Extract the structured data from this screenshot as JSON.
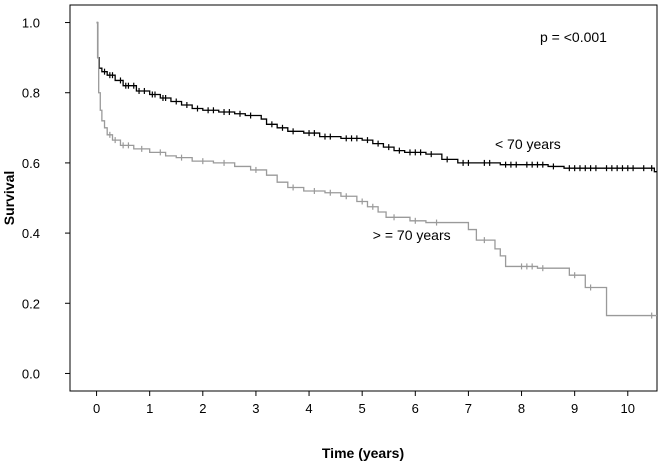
{
  "chart_data": {
    "type": "line",
    "subtype": "kaplan-meier",
    "title": "",
    "xlabel": "Time (years)",
    "ylabel": "Survival",
    "xlim": [
      -0.5,
      10.55
    ],
    "ylim": [
      -0.05,
      1.05
    ],
    "xticks": [
      0,
      1,
      2,
      3,
      4,
      5,
      6,
      7,
      8,
      9,
      10
    ],
    "yticks": [
      0.0,
      0.2,
      0.4,
      0.6,
      0.8,
      1.0
    ],
    "ytick_labels": [
      "0.0",
      "0.2",
      "0.4",
      "0.6",
      "0.8",
      "1.0"
    ],
    "grid": false,
    "annotation": "p = <0.001",
    "series": [
      {
        "name": "< 70 years",
        "color": "#000000",
        "steps": [
          [
            0,
            1.0
          ],
          [
            0.02,
            0.9
          ],
          [
            0.05,
            0.87
          ],
          [
            0.1,
            0.86
          ],
          [
            0.2,
            0.85
          ],
          [
            0.35,
            0.835
          ],
          [
            0.5,
            0.82
          ],
          [
            0.75,
            0.805
          ],
          [
            1.0,
            0.795
          ],
          [
            1.2,
            0.785
          ],
          [
            1.4,
            0.775
          ],
          [
            1.6,
            0.765
          ],
          [
            1.8,
            0.755
          ],
          [
            2.0,
            0.75
          ],
          [
            2.3,
            0.745
          ],
          [
            2.6,
            0.74
          ],
          [
            2.8,
            0.735
          ],
          [
            3.0,
            0.735
          ],
          [
            3.1,
            0.725
          ],
          [
            3.2,
            0.71
          ],
          [
            3.4,
            0.7
          ],
          [
            3.6,
            0.69
          ],
          [
            3.9,
            0.685
          ],
          [
            4.2,
            0.675
          ],
          [
            4.6,
            0.67
          ],
          [
            5.0,
            0.665
          ],
          [
            5.2,
            0.655
          ],
          [
            5.4,
            0.645
          ],
          [
            5.6,
            0.635
          ],
          [
            5.8,
            0.63
          ],
          [
            6.2,
            0.625
          ],
          [
            6.5,
            0.61
          ],
          [
            6.8,
            0.6
          ],
          [
            7.2,
            0.6
          ],
          [
            7.6,
            0.595
          ],
          [
            8.0,
            0.595
          ],
          [
            8.5,
            0.59
          ],
          [
            8.8,
            0.585
          ],
          [
            9.5,
            0.585
          ],
          [
            10.5,
            0.575
          ]
        ],
        "censor_x": [
          0.15,
          0.25,
          0.3,
          0.45,
          0.55,
          0.6,
          0.7,
          0.8,
          0.9,
          1.05,
          1.1,
          1.25,
          1.3,
          1.5,
          1.7,
          1.9,
          2.1,
          2.2,
          2.4,
          2.5,
          2.7,
          2.9,
          3.3,
          3.5,
          3.7,
          4.0,
          4.1,
          4.3,
          4.4,
          4.7,
          4.8,
          4.9,
          5.1,
          5.3,
          5.5,
          5.7,
          5.9,
          6.0,
          6.1,
          6.3,
          6.6,
          6.9,
          7.0,
          7.3,
          7.4,
          7.7,
          7.8,
          7.9,
          8.1,
          8.2,
          8.3,
          8.4,
          8.6,
          8.9,
          9.0,
          9.1,
          9.2,
          9.3,
          9.4,
          9.6,
          9.7,
          9.8,
          9.9,
          10.0,
          10.1,
          10.3,
          10.45
        ]
      },
      {
        "name": "> = 70 years",
        "color": "#9a9a9a",
        "steps": [
          [
            0,
            1.0
          ],
          [
            0.02,
            0.9
          ],
          [
            0.04,
            0.8
          ],
          [
            0.07,
            0.75
          ],
          [
            0.1,
            0.72
          ],
          [
            0.15,
            0.7
          ],
          [
            0.2,
            0.68
          ],
          [
            0.3,
            0.665
          ],
          [
            0.45,
            0.65
          ],
          [
            0.7,
            0.64
          ],
          [
            1.0,
            0.63
          ],
          [
            1.3,
            0.62
          ],
          [
            1.5,
            0.615
          ],
          [
            1.8,
            0.605
          ],
          [
            2.2,
            0.6
          ],
          [
            2.6,
            0.59
          ],
          [
            2.9,
            0.58
          ],
          [
            3.2,
            0.565
          ],
          [
            3.4,
            0.545
          ],
          [
            3.6,
            0.53
          ],
          [
            3.9,
            0.52
          ],
          [
            4.3,
            0.515
          ],
          [
            4.6,
            0.505
          ],
          [
            4.9,
            0.49
          ],
          [
            5.1,
            0.475
          ],
          [
            5.3,
            0.46
          ],
          [
            5.45,
            0.445
          ],
          [
            5.9,
            0.435
          ],
          [
            6.2,
            0.43
          ],
          [
            7.0,
            0.41
          ],
          [
            7.15,
            0.38
          ],
          [
            7.5,
            0.355
          ],
          [
            7.6,
            0.335
          ],
          [
            7.7,
            0.305
          ],
          [
            8.3,
            0.3
          ],
          [
            8.9,
            0.28
          ],
          [
            9.2,
            0.245
          ],
          [
            9.6,
            0.165
          ],
          [
            10.5,
            0.165
          ]
        ],
        "censor_x": [
          0.25,
          0.35,
          0.5,
          0.6,
          0.85,
          1.2,
          1.6,
          2.0,
          2.4,
          3.0,
          3.7,
          4.1,
          4.4,
          4.7,
          5.0,
          5.2,
          5.6,
          6.0,
          6.4,
          7.3,
          8.0,
          8.1,
          8.2,
          8.4,
          9.0,
          9.3,
          10.45
        ]
      }
    ],
    "labels": [
      {
        "text": "< 70 years",
        "x": 7.5,
        "y": 0.64
      },
      {
        "text": "> = 70 years",
        "x": 5.2,
        "y": 0.38
      }
    ]
  }
}
